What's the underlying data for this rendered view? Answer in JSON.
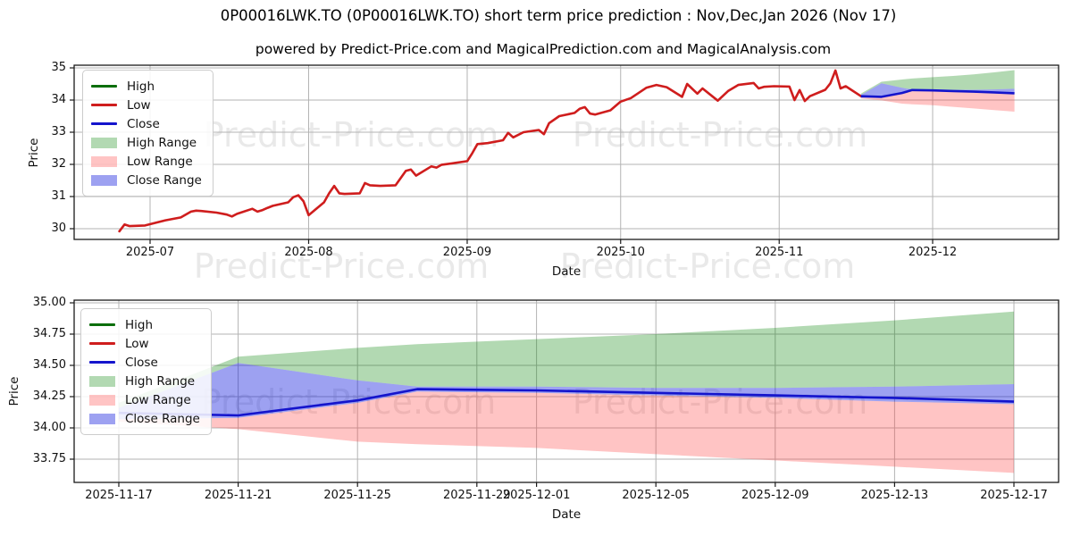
{
  "page": {
    "title": "0P00016LWK.TO (0P00016LWK.TO) short term price prediction : Nov,Dec,Jan 2026 (Nov 17)",
    "subtitle": "powered by Predict-Price.com and MagicalPrediction.com and MagicalAnalysis.com",
    "watermark": "Predict-Price.com"
  },
  "legend": {
    "items": [
      {
        "label": "High",
        "type": "line",
        "color": "#0b6e0b"
      },
      {
        "label": "Low",
        "type": "line",
        "color": "#cf1d1d"
      },
      {
        "label": "Close",
        "type": "line",
        "color": "#1414cc"
      },
      {
        "label": "High Range",
        "type": "patch",
        "color": "rgba(0,128,0,0.30)"
      },
      {
        "label": "Low Range",
        "type": "patch",
        "color": "rgba(255,60,60,0.30)"
      },
      {
        "label": "Close Range",
        "type": "patch",
        "color": "rgba(10,20,220,0.40)"
      }
    ]
  },
  "chart_data": {
    "type": "line",
    "title": "0P00016LWK.TO (0P00016LWK.TO) short term price prediction : Nov,Dec,Jan 2026 (Nov 17)",
    "charts": [
      {
        "id": "history_with_forecast",
        "xlabel": "Date",
        "ylabel": "Price",
        "ylim": [
          29.67,
          35.08
        ],
        "grid": true,
        "legend_position": "upper left",
        "yticks": [
          "30",
          "31",
          "32",
          "33",
          "34",
          "35"
        ],
        "xticks": [
          {
            "pos": "2025-07-01",
            "label": "2025-07"
          },
          {
            "pos": "2025-08-01",
            "label": "2025-08"
          },
          {
            "pos": "2025-09-01",
            "label": "2025-09"
          },
          {
            "pos": "2025-10-01",
            "label": "2025-10"
          },
          {
            "pos": "2025-11-01",
            "label": "2025-11"
          },
          {
            "pos": "2025-12-01",
            "label": "2025-12"
          }
        ],
        "low_history": [
          [
            "2025-06-25",
            29.92
          ],
          [
            "2025-06-26",
            30.13
          ],
          [
            "2025-06-27",
            30.08
          ],
          [
            "2025-06-30",
            30.1
          ],
          [
            "2025-07-02",
            30.18
          ],
          [
            "2025-07-04",
            30.26
          ],
          [
            "2025-07-07",
            30.35
          ],
          [
            "2025-07-09",
            30.53
          ],
          [
            "2025-07-10",
            30.56
          ],
          [
            "2025-07-11",
            30.55
          ],
          [
            "2025-07-14",
            30.5
          ],
          [
            "2025-07-16",
            30.44
          ],
          [
            "2025-07-17",
            30.38
          ],
          [
            "2025-07-18",
            30.46
          ],
          [
            "2025-07-21",
            30.62
          ],
          [
            "2025-07-22",
            30.53
          ],
          [
            "2025-07-23",
            30.58
          ],
          [
            "2025-07-24",
            30.65
          ],
          [
            "2025-07-25",
            30.71
          ],
          [
            "2025-07-28",
            30.82
          ],
          [
            "2025-07-29",
            30.98
          ],
          [
            "2025-07-30",
            31.04
          ],
          [
            "2025-07-31",
            30.85
          ],
          [
            "2025-08-01",
            30.42
          ],
          [
            "2025-08-04",
            30.82
          ],
          [
            "2025-08-05",
            31.1
          ],
          [
            "2025-08-06",
            31.33
          ],
          [
            "2025-08-07",
            31.1
          ],
          [
            "2025-08-08",
            31.08
          ],
          [
            "2025-08-11",
            31.1
          ],
          [
            "2025-08-12",
            31.42
          ],
          [
            "2025-08-13",
            31.35
          ],
          [
            "2025-08-15",
            31.33
          ],
          [
            "2025-08-18",
            31.35
          ],
          [
            "2025-08-20",
            31.8
          ],
          [
            "2025-08-21",
            31.84
          ],
          [
            "2025-08-22",
            31.65
          ],
          [
            "2025-08-25",
            31.94
          ],
          [
            "2025-08-26",
            31.9
          ],
          [
            "2025-08-27",
            31.99
          ],
          [
            "2025-08-29",
            32.03
          ],
          [
            "2025-09-01",
            32.1
          ],
          [
            "2025-09-02",
            32.35
          ],
          [
            "2025-09-03",
            32.63
          ],
          [
            "2025-09-05",
            32.66
          ],
          [
            "2025-09-08",
            32.75
          ],
          [
            "2025-09-09",
            32.98
          ],
          [
            "2025-09-10",
            32.84
          ],
          [
            "2025-09-12",
            33.0
          ],
          [
            "2025-09-15",
            33.07
          ],
          [
            "2025-09-16",
            32.94
          ],
          [
            "2025-09-17",
            33.28
          ],
          [
            "2025-09-19",
            33.5
          ],
          [
            "2025-09-22",
            33.6
          ],
          [
            "2025-09-23",
            33.73
          ],
          [
            "2025-09-24",
            33.78
          ],
          [
            "2025-09-25",
            33.58
          ],
          [
            "2025-09-26",
            33.55
          ],
          [
            "2025-09-29",
            33.68
          ],
          [
            "2025-10-01",
            33.95
          ],
          [
            "2025-10-03",
            34.06
          ],
          [
            "2025-10-06",
            34.38
          ],
          [
            "2025-10-08",
            34.47
          ],
          [
            "2025-10-10",
            34.4
          ],
          [
            "2025-10-13",
            34.1
          ],
          [
            "2025-10-14",
            34.5
          ],
          [
            "2025-10-16",
            34.2
          ],
          [
            "2025-10-17",
            34.36
          ],
          [
            "2025-10-20",
            33.98
          ],
          [
            "2025-10-22",
            34.28
          ],
          [
            "2025-10-24",
            34.47
          ],
          [
            "2025-10-27",
            34.53
          ],
          [
            "2025-10-28",
            34.36
          ],
          [
            "2025-10-29",
            34.41
          ],
          [
            "2025-10-31",
            34.43
          ],
          [
            "2025-11-03",
            34.42
          ],
          [
            "2025-11-04",
            34.0
          ],
          [
            "2025-11-05",
            34.31
          ],
          [
            "2025-11-06",
            33.97
          ],
          [
            "2025-11-07",
            34.12
          ],
          [
            "2025-11-10",
            34.32
          ],
          [
            "2025-11-11",
            34.52
          ],
          [
            "2025-11-12",
            34.92
          ],
          [
            "2025-11-13",
            34.36
          ],
          [
            "2025-11-14",
            34.43
          ],
          [
            "2025-11-17",
            34.12
          ]
        ]
      },
      {
        "id": "forecast_detail",
        "xlabel": "Date",
        "ylabel": "Price",
        "ylim": [
          33.58,
          35.02
        ],
        "grid": true,
        "legend_position": "upper left",
        "yticks": [
          "33.75",
          "34.00",
          "34.25",
          "34.50",
          "34.75",
          "35.00"
        ],
        "xticks": [
          {
            "pos": "2025-11-17",
            "label": "2025-11-17"
          },
          {
            "pos": "2025-11-21",
            "label": "2025-11-21"
          },
          {
            "pos": "2025-11-25",
            "label": "2025-11-25"
          },
          {
            "pos": "2025-11-29",
            "label": "2025-11-29"
          },
          {
            "pos": "2025-12-01",
            "label": "2025-12-01"
          },
          {
            "pos": "2025-12-05",
            "label": "2025-12-05"
          },
          {
            "pos": "2025-12-09",
            "label": "2025-12-09"
          },
          {
            "pos": "2025-12-13",
            "label": "2025-12-13"
          },
          {
            "pos": "2025-12-17",
            "label": "2025-12-17"
          }
        ]
      }
    ],
    "forecast": {
      "dates": [
        "2025-11-17",
        "2025-11-21",
        "2025-11-25",
        "2025-11-27",
        "2025-12-01",
        "2025-12-05",
        "2025-12-09",
        "2025-12-13",
        "2025-12-17"
      ],
      "close": [
        34.12,
        34.1,
        34.22,
        34.31,
        34.3,
        34.28,
        34.26,
        34.24,
        34.21
      ],
      "close_range_top": [
        34.16,
        34.52,
        34.38,
        34.33,
        34.33,
        34.32,
        34.32,
        34.33,
        34.35
      ],
      "close_range_bottom": [
        34.07,
        34.08,
        34.2,
        34.29,
        34.28,
        34.26,
        34.24,
        34.21,
        34.19
      ],
      "high_range_top": [
        34.2,
        34.57,
        34.64,
        34.67,
        34.71,
        34.75,
        34.8,
        34.86,
        34.93
      ],
      "low_range_bottom": [
        34.05,
        33.99,
        33.89,
        33.87,
        33.84,
        33.79,
        33.74,
        33.69,
        33.64
      ]
    }
  }
}
